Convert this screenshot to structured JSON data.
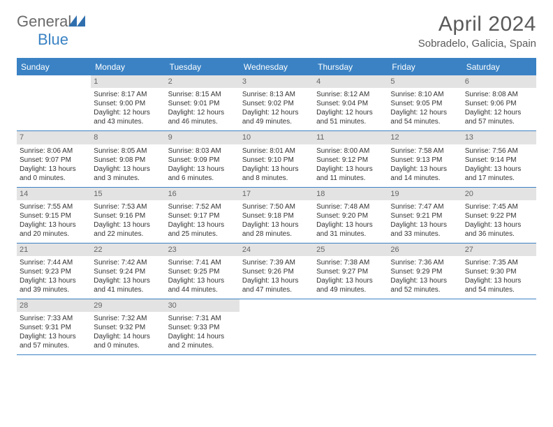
{
  "brand": {
    "part1": "General",
    "part2": "Blue"
  },
  "title": "April 2024",
  "location": "Sobradelo, Galicia, Spain",
  "colors": {
    "accent": "#3a82c4",
    "daynum_bg": "#e3e3e3",
    "text": "#333333",
    "muted": "#5a5a5a"
  },
  "days_of_week": [
    "Sunday",
    "Monday",
    "Tuesday",
    "Wednesday",
    "Thursday",
    "Friday",
    "Saturday"
  ],
  "weeks": [
    [
      null,
      {
        "n": "1",
        "sr": "8:17 AM",
        "ss": "9:00 PM",
        "dl": "12 hours and 43 minutes."
      },
      {
        "n": "2",
        "sr": "8:15 AM",
        "ss": "9:01 PM",
        "dl": "12 hours and 46 minutes."
      },
      {
        "n": "3",
        "sr": "8:13 AM",
        "ss": "9:02 PM",
        "dl": "12 hours and 49 minutes."
      },
      {
        "n": "4",
        "sr": "8:12 AM",
        "ss": "9:04 PM",
        "dl": "12 hours and 51 minutes."
      },
      {
        "n": "5",
        "sr": "8:10 AM",
        "ss": "9:05 PM",
        "dl": "12 hours and 54 minutes."
      },
      {
        "n": "6",
        "sr": "8:08 AM",
        "ss": "9:06 PM",
        "dl": "12 hours and 57 minutes."
      }
    ],
    [
      {
        "n": "7",
        "sr": "8:06 AM",
        "ss": "9:07 PM",
        "dl": "13 hours and 0 minutes."
      },
      {
        "n": "8",
        "sr": "8:05 AM",
        "ss": "9:08 PM",
        "dl": "13 hours and 3 minutes."
      },
      {
        "n": "9",
        "sr": "8:03 AM",
        "ss": "9:09 PM",
        "dl": "13 hours and 6 minutes."
      },
      {
        "n": "10",
        "sr": "8:01 AM",
        "ss": "9:10 PM",
        "dl": "13 hours and 8 minutes."
      },
      {
        "n": "11",
        "sr": "8:00 AM",
        "ss": "9:12 PM",
        "dl": "13 hours and 11 minutes."
      },
      {
        "n": "12",
        "sr": "7:58 AM",
        "ss": "9:13 PM",
        "dl": "13 hours and 14 minutes."
      },
      {
        "n": "13",
        "sr": "7:56 AM",
        "ss": "9:14 PM",
        "dl": "13 hours and 17 minutes."
      }
    ],
    [
      {
        "n": "14",
        "sr": "7:55 AM",
        "ss": "9:15 PM",
        "dl": "13 hours and 20 minutes."
      },
      {
        "n": "15",
        "sr": "7:53 AM",
        "ss": "9:16 PM",
        "dl": "13 hours and 22 minutes."
      },
      {
        "n": "16",
        "sr": "7:52 AM",
        "ss": "9:17 PM",
        "dl": "13 hours and 25 minutes."
      },
      {
        "n": "17",
        "sr": "7:50 AM",
        "ss": "9:18 PM",
        "dl": "13 hours and 28 minutes."
      },
      {
        "n": "18",
        "sr": "7:48 AM",
        "ss": "9:20 PM",
        "dl": "13 hours and 31 minutes."
      },
      {
        "n": "19",
        "sr": "7:47 AM",
        "ss": "9:21 PM",
        "dl": "13 hours and 33 minutes."
      },
      {
        "n": "20",
        "sr": "7:45 AM",
        "ss": "9:22 PM",
        "dl": "13 hours and 36 minutes."
      }
    ],
    [
      {
        "n": "21",
        "sr": "7:44 AM",
        "ss": "9:23 PM",
        "dl": "13 hours and 39 minutes."
      },
      {
        "n": "22",
        "sr": "7:42 AM",
        "ss": "9:24 PM",
        "dl": "13 hours and 41 minutes."
      },
      {
        "n": "23",
        "sr": "7:41 AM",
        "ss": "9:25 PM",
        "dl": "13 hours and 44 minutes."
      },
      {
        "n": "24",
        "sr": "7:39 AM",
        "ss": "9:26 PM",
        "dl": "13 hours and 47 minutes."
      },
      {
        "n": "25",
        "sr": "7:38 AM",
        "ss": "9:27 PM",
        "dl": "13 hours and 49 minutes."
      },
      {
        "n": "26",
        "sr": "7:36 AM",
        "ss": "9:29 PM",
        "dl": "13 hours and 52 minutes."
      },
      {
        "n": "27",
        "sr": "7:35 AM",
        "ss": "9:30 PM",
        "dl": "13 hours and 54 minutes."
      }
    ],
    [
      {
        "n": "28",
        "sr": "7:33 AM",
        "ss": "9:31 PM",
        "dl": "13 hours and 57 minutes."
      },
      {
        "n": "29",
        "sr": "7:32 AM",
        "ss": "9:32 PM",
        "dl": "14 hours and 0 minutes."
      },
      {
        "n": "30",
        "sr": "7:31 AM",
        "ss": "9:33 PM",
        "dl": "14 hours and 2 minutes."
      },
      null,
      null,
      null,
      null
    ]
  ],
  "labels": {
    "sunrise": "Sunrise: ",
    "sunset": "Sunset: ",
    "daylight": "Daylight: "
  }
}
